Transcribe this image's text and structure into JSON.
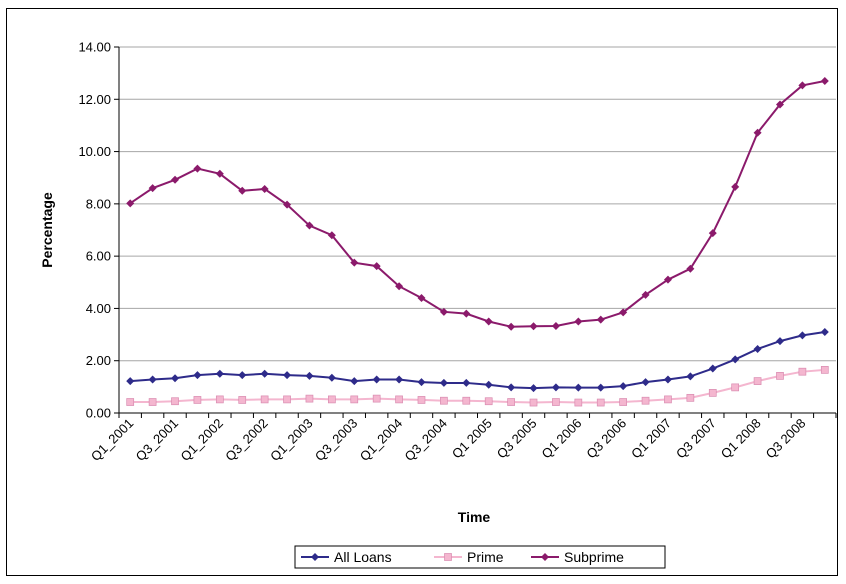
{
  "chart_data": {
    "type": "line",
    "xlabel": "Time",
    "ylabel": "Percentage",
    "ylim": [
      0,
      14
    ],
    "yticks": [
      "0.00",
      "2.00",
      "4.00",
      "6.00",
      "8.00",
      "10.00",
      "12.00",
      "14.00"
    ],
    "grid": true,
    "legend_position": "bottom",
    "categories": [
      "Q1_2001",
      "Q2_2001",
      "Q3_2001",
      "Q4_2001",
      "Q1_2002",
      "Q2_2002",
      "Q3_2002",
      "Q4_2002",
      "Q1_2003",
      "Q2_2003",
      "Q3_2003",
      "Q4_2003",
      "Q1_2004",
      "Q2_2004",
      "Q3_2004",
      "Q4_2004",
      "Q1 2005",
      "Q2 2005",
      "Q3 2005",
      "Q4 2005",
      "Q1 2006",
      "Q2 2006",
      "Q3 2006",
      "Q4 2006",
      "Q1 2007",
      "Q2 2007",
      "Q3 2007",
      "Q4 2007",
      "Q1 2008",
      "Q2 2008",
      "Q3 2008",
      "Q4 2008"
    ],
    "tick_labels_shown": [
      "Q1_2001",
      "Q3_2001",
      "Q1_2002",
      "Q3_2002",
      "Q1_2003",
      "Q3_2003",
      "Q1_2004",
      "Q3_2004",
      "Q1 2005",
      "Q3 2005",
      "Q1 2006",
      "Q3 2006",
      "Q1 2007",
      "Q3 2007",
      "Q1 2008",
      "Q3 2008"
    ],
    "series": [
      {
        "name": "All Loans",
        "color": "#2e2b8a",
        "marker": "diamond",
        "values": [
          1.22,
          1.28,
          1.33,
          1.45,
          1.5,
          1.45,
          1.5,
          1.45,
          1.42,
          1.35,
          1.22,
          1.28,
          1.28,
          1.18,
          1.15,
          1.15,
          1.08,
          0.98,
          0.95,
          0.98,
          0.97,
          0.97,
          1.03,
          1.18,
          1.28,
          1.4,
          1.7,
          2.05,
          2.45,
          2.75,
          2.97,
          3.1
        ]
      },
      {
        "name": "Prime",
        "color": "#f4b6cf",
        "marker": "square",
        "values": [
          0.42,
          0.42,
          0.45,
          0.5,
          0.52,
          0.5,
          0.52,
          0.52,
          0.55,
          0.52,
          0.52,
          0.55,
          0.52,
          0.5,
          0.47,
          0.47,
          0.45,
          0.42,
          0.4,
          0.42,
          0.4,
          0.4,
          0.42,
          0.47,
          0.52,
          0.58,
          0.77,
          0.98,
          1.22,
          1.42,
          1.58,
          1.65
        ]
      },
      {
        "name": "Subprime",
        "color": "#8b1a6b",
        "marker": "diamond",
        "values": [
          8.02,
          8.6,
          8.92,
          9.35,
          9.15,
          8.5,
          8.57,
          7.97,
          7.17,
          6.8,
          5.75,
          5.62,
          4.85,
          4.4,
          3.87,
          3.8,
          3.5,
          3.3,
          3.32,
          3.33,
          3.5,
          3.57,
          3.85,
          4.52,
          5.1,
          5.52,
          6.88,
          8.65,
          10.72,
          11.8,
          12.53,
          12.7
        ]
      }
    ]
  }
}
